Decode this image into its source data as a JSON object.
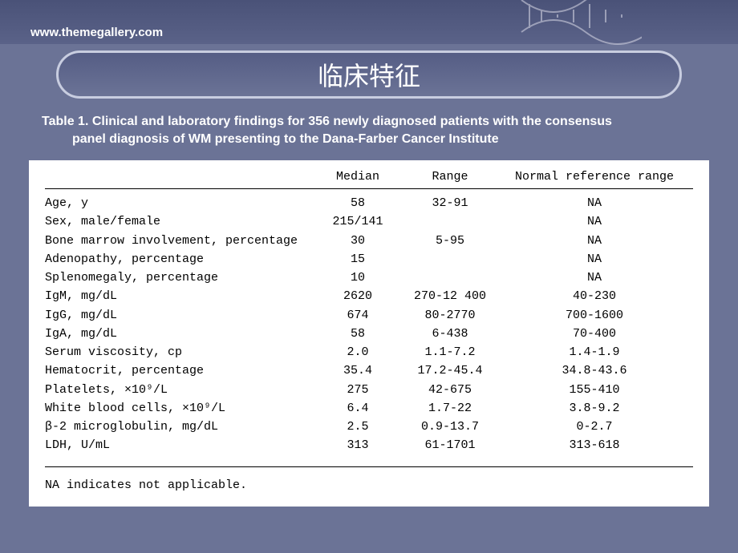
{
  "header": {
    "url": "www.themegallery.com"
  },
  "title": "临床特征",
  "caption_line1": "Table 1. Clinical and laboratory findings for 356 newly diagnosed patients with the consensus",
  "caption_line2": "panel diagnosis of WM presenting to the Dana-Farber Cancer Institute",
  "table": {
    "headers": {
      "median": "Median",
      "range": "Range",
      "ref": "Normal reference range"
    },
    "rows": [
      {
        "param": "Age, y",
        "median": "58",
        "range": "32-91",
        "ref": "NA"
      },
      {
        "param": "Sex, male/female",
        "median": "215/141",
        "range": "",
        "ref": "NA"
      },
      {
        "param": "Bone marrow involvement, percentage",
        "median": "30",
        "range": "5-95",
        "ref": "NA"
      },
      {
        "param": "Adenopathy, percentage",
        "median": "15",
        "range": "",
        "ref": "NA"
      },
      {
        "param": "Splenomegaly, percentage",
        "median": "10",
        "range": "",
        "ref": "NA"
      },
      {
        "param": "IgM, mg/dL",
        "median": "2620",
        "range": "270-12 400",
        "ref": "40-230"
      },
      {
        "param": "IgG, mg/dL",
        "median": "674",
        "range": "80-2770",
        "ref": "700-1600"
      },
      {
        "param": "IgA, mg/dL",
        "median": "58",
        "range": "6-438",
        "ref": "70-400"
      },
      {
        "param": "Serum viscosity, cp",
        "median": "2.0",
        "range": "1.1-7.2",
        "ref": "1.4-1.9"
      },
      {
        "param": "Hematocrit, percentage",
        "median": "35.4",
        "range": "17.2-45.4",
        "ref": "34.8-43.6"
      },
      {
        "param": "Platelets, ×10⁹/L",
        "median": "275",
        "range": "42-675",
        "ref": "155-410"
      },
      {
        "param": "White blood cells, ×10⁹/L",
        "median": "6.4",
        "range": "1.7-22",
        "ref": "3.8-9.2"
      },
      {
        "param": "β-2 microglobulin, mg/dL",
        "median": "2.5",
        "range": "0.9-13.7",
        "ref": "0-2.7"
      },
      {
        "param": "LDH, U/mL",
        "median": "313",
        "range": "61-1701",
        "ref": "313-618"
      }
    ],
    "footnote": "NA indicates not applicable."
  },
  "colors": {
    "slide_bg": "#6b7396",
    "topbar_from": "#4a5278",
    "topbar_to": "#5a6288",
    "pill_border": "#c8cde0",
    "text_white": "#ffffff",
    "table_bg": "#ffffff",
    "table_text": "#000000"
  }
}
